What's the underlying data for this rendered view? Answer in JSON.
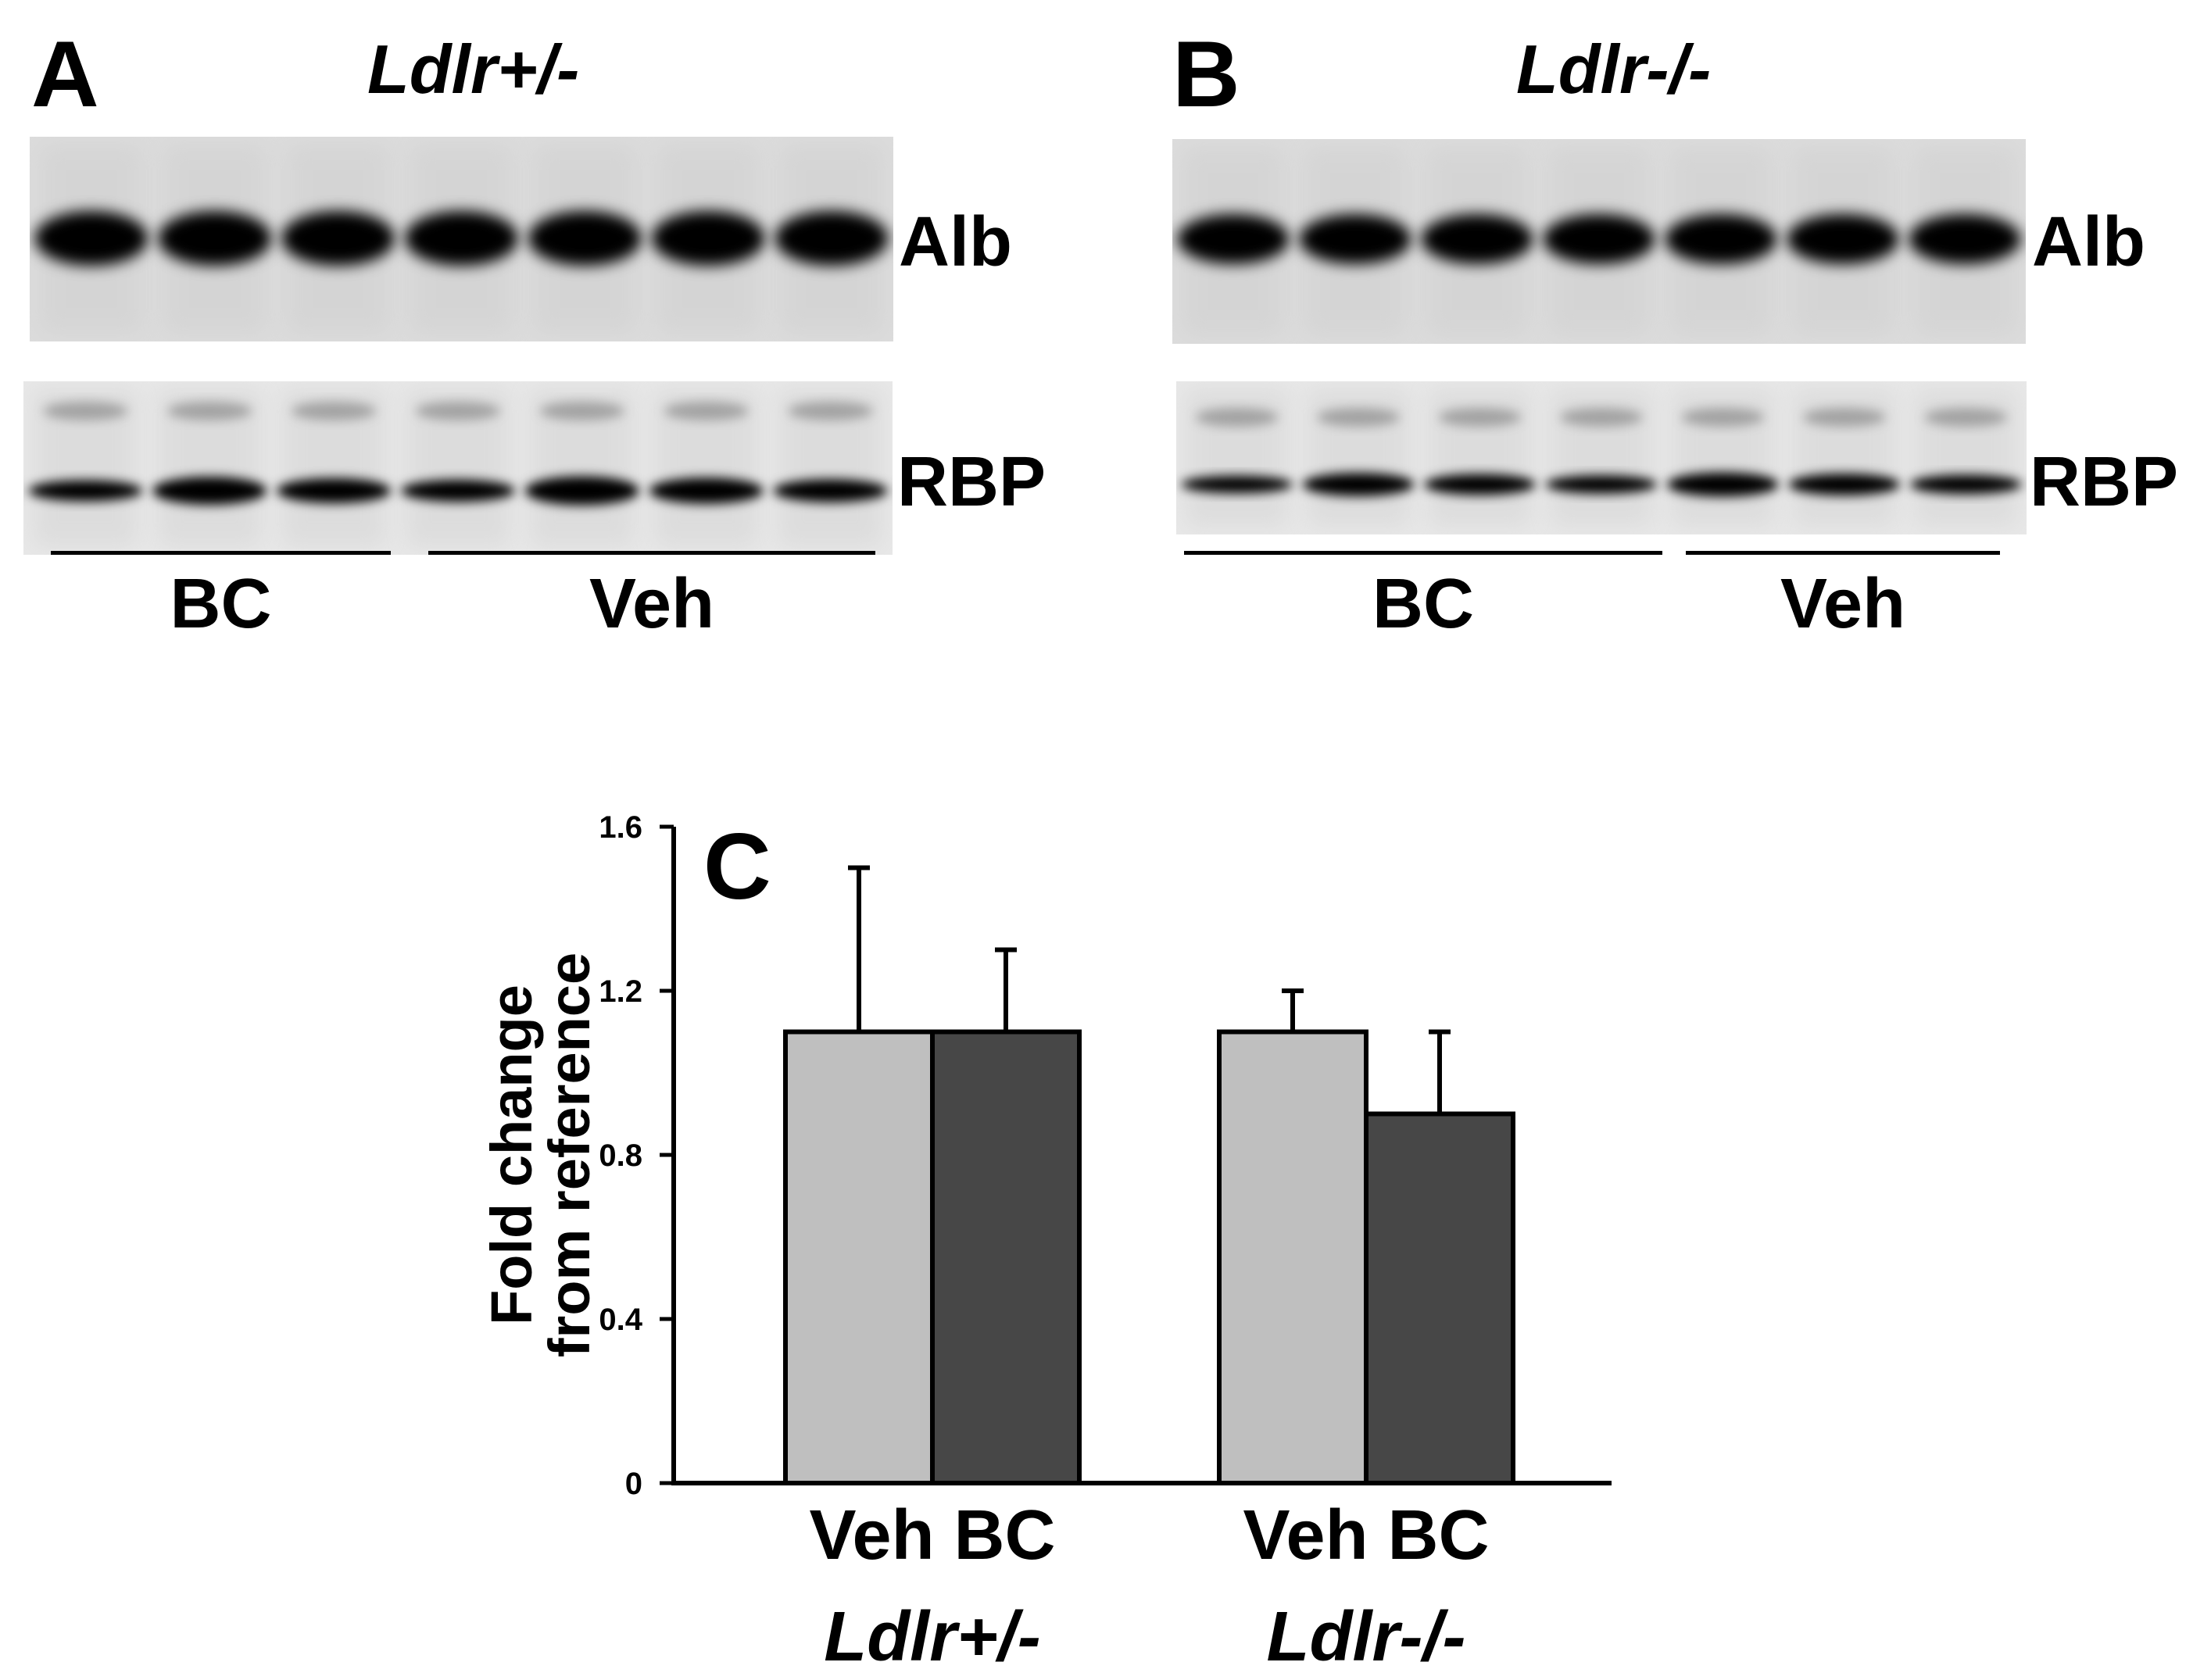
{
  "panels": {
    "a": {
      "letter": "A",
      "genotype": "Ldlr+/-",
      "band_top": "Alb",
      "band_bottom": "RBP",
      "groups": [
        "BC",
        "Veh"
      ],
      "lanes_per_group": [
        3,
        4
      ]
    },
    "b": {
      "letter": "B",
      "genotype": "Ldlr-/-",
      "band_top": "Alb",
      "band_bottom": "RBP",
      "groups": [
        "BC",
        "Veh"
      ],
      "lanes_per_group": [
        4,
        3
      ]
    }
  },
  "chart_data": {
    "type": "bar",
    "panel_letter": "C",
    "title": "",
    "ylabel_lines": [
      "Fold change",
      "from reference"
    ],
    "xlabel": "",
    "ylim": [
      0,
      1.6
    ],
    "yticks": [
      0,
      0.4,
      0.8,
      1.2,
      1.6
    ],
    "ytick_labels": [
      "0",
      "0.4",
      "0.8",
      "1.2",
      "1.6"
    ],
    "groups": [
      {
        "label": "Ldlr+/-",
        "category_label": "Veh BC",
        "bars": [
          {
            "name": "Veh",
            "value": 1.1,
            "error": 0.4
          },
          {
            "name": "BC",
            "value": 1.1,
            "error": 0.2
          }
        ]
      },
      {
        "label": "Ldlr-/-",
        "category_label": "Veh BC",
        "bars": [
          {
            "name": "Veh",
            "value": 1.1,
            "error": 0.1
          },
          {
            "name": "BC",
            "value": 0.9,
            "error": 0.2
          }
        ]
      }
    ],
    "colors": {
      "Veh": "#bfbfbf",
      "BC": "#474747"
    },
    "grid": false,
    "legend": "none"
  }
}
